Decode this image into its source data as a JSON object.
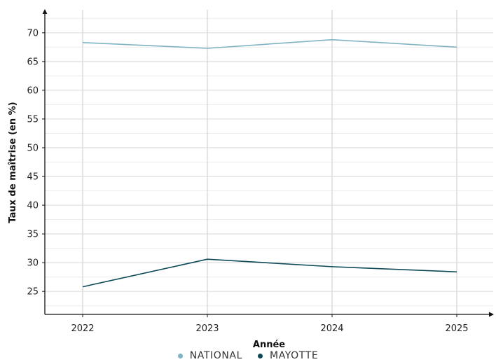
{
  "chart_data": {
    "type": "line",
    "x": [
      2022,
      2023,
      2024,
      2025
    ],
    "xlabel": "Année",
    "ylabel": "Taux de maîtrise (en %)",
    "ylim": [
      21,
      74
    ],
    "yticks": [
      25,
      30,
      35,
      40,
      45,
      50,
      55,
      60,
      65,
      70
    ],
    "grid": true,
    "legend_position": "bottom",
    "series": [
      {
        "name": "NATIONAL",
        "color": "#7fb3c2",
        "values": [
          68.3,
          67.3,
          68.8,
          67.5
        ]
      },
      {
        "name": "MAYOTTE",
        "color": "#0d4a57",
        "values": [
          25.8,
          30.6,
          29.3,
          28.4
        ]
      }
    ]
  }
}
